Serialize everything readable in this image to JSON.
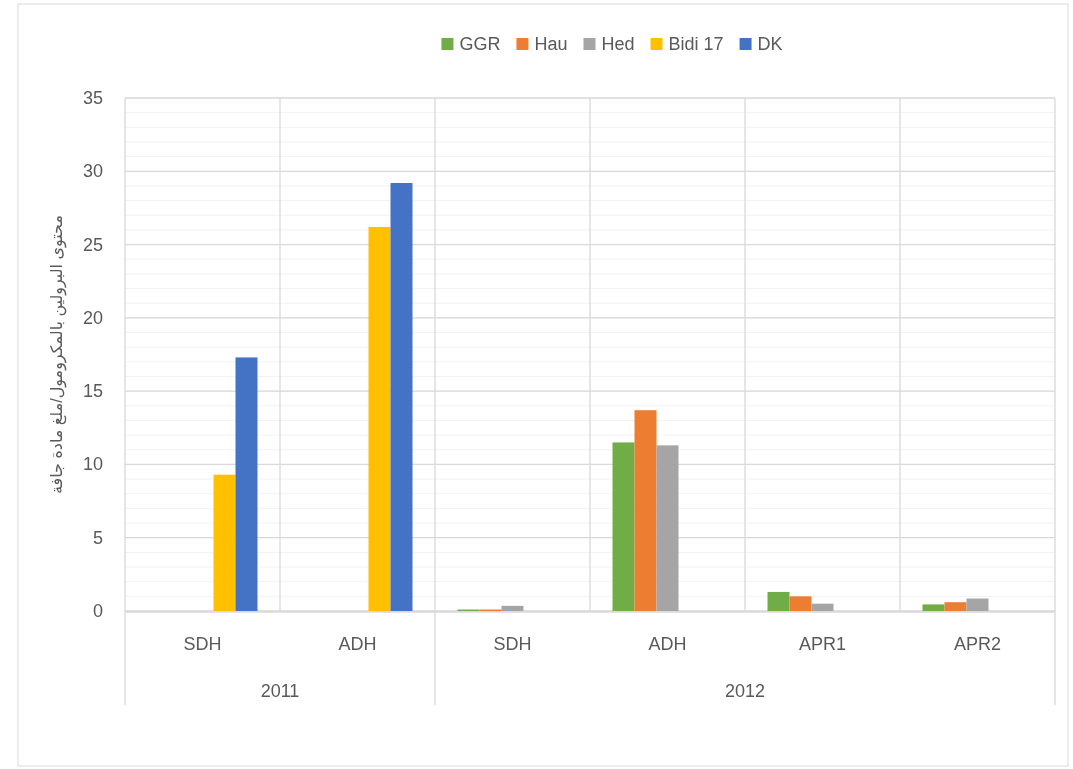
{
  "chart_data": {
    "type": "bar",
    "ylabel": "محتوى البرولين بالمكرومول/ملغ مادة جافة",
    "categories": [
      "SDH",
      "ADH",
      "SDH",
      "ADH",
      "APR1",
      "APR2"
    ],
    "annotations": [
      "2011",
      "2012"
    ],
    "series": [
      {
        "name": "GGR",
        "color": "#70ad47",
        "values": [
          null,
          null,
          0.1,
          11.5,
          1.3,
          0.45
        ]
      },
      {
        "name": "Hau",
        "color": "#ed7d31",
        "values": [
          null,
          null,
          0.1,
          13.7,
          1.0,
          0.6
        ]
      },
      {
        "name": "Hed",
        "color": "#a5a5a5",
        "values": [
          null,
          null,
          0.35,
          11.3,
          0.5,
          0.85
        ]
      },
      {
        "name": "Bidi 17",
        "color": "#ffc000",
        "values": [
          9.3,
          26.2,
          null,
          null,
          null,
          null
        ]
      },
      {
        "name": "DK",
        "color": "#4472c4",
        "values": [
          17.3,
          29.2,
          null,
          null,
          null,
          null
        ]
      }
    ],
    "ylim": [
      0,
      35
    ],
    "yticks": [
      0,
      5,
      10,
      15,
      20,
      25,
      30,
      35
    ],
    "grid": true,
    "legend": "top"
  }
}
